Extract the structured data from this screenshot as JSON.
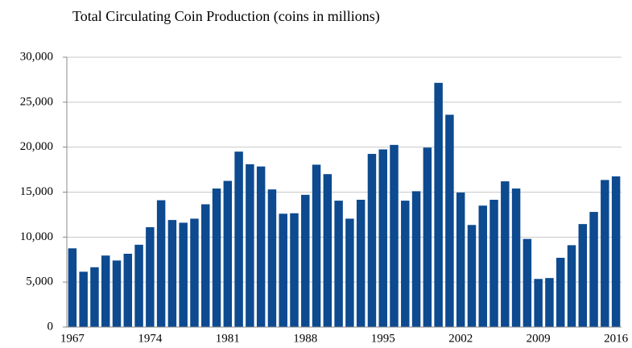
{
  "chart_data": {
    "type": "bar",
    "title": "Total Circulating Coin Production (coins in millions)",
    "categories": [
      "1967",
      null,
      null,
      null,
      null,
      null,
      null,
      "1974",
      null,
      null,
      null,
      null,
      null,
      null,
      "1981",
      null,
      null,
      null,
      null,
      null,
      null,
      "1988",
      null,
      null,
      null,
      null,
      null,
      null,
      "1995",
      null,
      null,
      null,
      null,
      null,
      null,
      "2002",
      null,
      null,
      null,
      null,
      null,
      null,
      "2009",
      null,
      null,
      null,
      null,
      null,
      null,
      "2016"
    ],
    "values": [
      8750,
      6150,
      6650,
      7950,
      7400,
      8150,
      9150,
      11100,
      14100,
      11900,
      11600,
      12050,
      13650,
      15400,
      16250,
      19500,
      18100,
      17850,
      15300,
      12600,
      12650,
      14700,
      18050,
      17000,
      14050,
      12050,
      14150,
      19250,
      19750,
      20250,
      14050,
      15100,
      19950,
      27150,
      23600,
      14950,
      11350,
      13500,
      14150,
      16200,
      15400,
      9800,
      5350,
      5450,
      7700,
      9100,
      11450,
      12800,
      16350,
      16750
    ],
    "color": "#0d4a8f",
    "ylim": [
      0,
      30000
    ],
    "yticks": [
      0,
      {
        "value": 5000,
        "label": "5,000"
      },
      {
        "value": 10000,
        "label": "10,000"
      },
      {
        "value": 15000,
        "label": "15,000"
      },
      {
        "value": 20000,
        "label": "20,000"
      },
      {
        "value": 25000,
        "label": "25,000"
      },
      {
        "value": 30000,
        "label": "30,000"
      }
    ],
    "grid": true
  }
}
